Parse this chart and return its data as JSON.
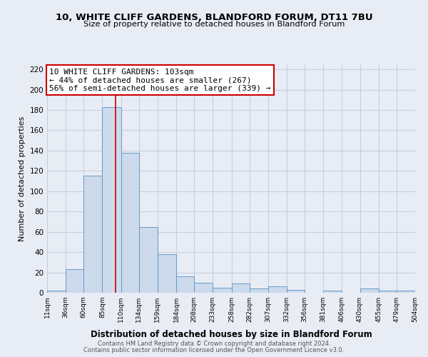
{
  "title1": "10, WHITE CLIFF GARDENS, BLANDFORD FORUM, DT11 7BU",
  "title2": "Size of property relative to detached houses in Blandford Forum",
  "xlabel": "Distribution of detached houses by size in Blandford Forum",
  "ylabel": "Number of detached properties",
  "bin_edges": [
    11,
    36,
    60,
    85,
    110,
    134,
    159,
    184,
    208,
    233,
    258,
    282,
    307,
    332,
    356,
    381,
    406,
    430,
    455,
    479,
    504
  ],
  "bar_heights": [
    2,
    23,
    115,
    183,
    138,
    65,
    38,
    16,
    10,
    5,
    9,
    4,
    6,
    3,
    0,
    2,
    0,
    4,
    2,
    2
  ],
  "bar_color": "#ccdaeb",
  "bar_edgecolor": "#6699cc",
  "grid_color": "#c5cfe0",
  "bg_color": "#e8edf5",
  "property_line_x": 103,
  "property_line_color": "#cc0000",
  "annotation_line1": "10 WHITE CLIFF GARDENS: 103sqm",
  "annotation_line2": "← 44% of detached houses are smaller (267)",
  "annotation_line3": "56% of semi-detached houses are larger (339) →",
  "annotation_box_edgecolor": "#cc0000",
  "annotation_box_facecolor": "#ffffff",
  "ylim": [
    0,
    225
  ],
  "yticks": [
    0,
    20,
    40,
    60,
    80,
    100,
    120,
    140,
    160,
    180,
    200,
    220
  ],
  "tick_labels": [
    "11sqm",
    "36sqm",
    "60sqm",
    "85sqm",
    "110sqm",
    "134sqm",
    "159sqm",
    "184sqm",
    "208sqm",
    "233sqm",
    "258sqm",
    "282sqm",
    "307sqm",
    "332sqm",
    "356sqm",
    "381sqm",
    "406sqm",
    "430sqm",
    "455sqm",
    "479sqm",
    "504sqm"
  ],
  "footer1": "Contains HM Land Registry data © Crown copyright and database right 2024.",
  "footer2": "Contains public sector information licensed under the Open Government Licence v3.0."
}
